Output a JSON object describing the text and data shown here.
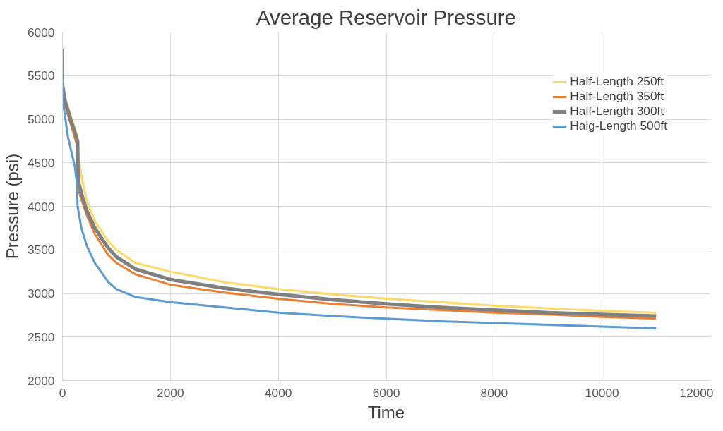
{
  "chart_data": {
    "type": "line",
    "title": "Average Reservoir Pressure",
    "xlabel": "Time",
    "ylabel": "Pressure (psi)",
    "xlim": [
      0,
      12000
    ],
    "xticks": [
      0,
      2000,
      4000,
      6000,
      8000,
      10000,
      12000
    ],
    "ylim": [
      2000,
      6000
    ],
    "yticks": [
      2000,
      2500,
      3000,
      3500,
      4000,
      4500,
      5000,
      5500,
      6000
    ],
    "grid": true,
    "legend": "top right",
    "marker": "none",
    "line_style": "solid",
    "series": [
      {
        "name": "Half-Length 250ft",
        "color": "#ffd966",
        "x": [
          50,
          150,
          280,
          300,
          350,
          450,
          600,
          850,
          1000,
          1350,
          2000,
          3000,
          4000,
          5000,
          6000,
          7000,
          8000,
          9000,
          10000,
          11000
        ],
        "values": [
          5250,
          5050,
          4800,
          4550,
          4350,
          4060,
          3830,
          3600,
          3500,
          3350,
          3250,
          3130,
          3050,
          2990,
          2940,
          2900,
          2860,
          2830,
          2800,
          2780
        ]
      },
      {
        "name": "Half-Length 350ft",
        "color": "#ed7d31",
        "x": [
          0,
          50,
          150,
          270,
          290,
          350,
          450,
          600,
          850,
          1000,
          1350,
          2000,
          3000,
          4000,
          5000,
          6000,
          7000,
          8000,
          9000,
          10000,
          11000
        ],
        "values": [
          5350,
          5150,
          4950,
          4700,
          4200,
          4080,
          3900,
          3680,
          3440,
          3350,
          3220,
          3100,
          3010,
          2940,
          2880,
          2840,
          2810,
          2780,
          2760,
          2730,
          2710
        ]
      },
      {
        "name": "Half-Length 300ft",
        "color": "#808080",
        "x": [
          0,
          50,
          150,
          280,
          290,
          350,
          450,
          600,
          850,
          1000,
          1350,
          2000,
          3000,
          4000,
          5000,
          6000,
          7000,
          8000,
          9000,
          10000,
          11000
        ],
        "values": [
          5400,
          5200,
          5000,
          4750,
          4300,
          4150,
          3950,
          3750,
          3520,
          3420,
          3280,
          3160,
          3060,
          2990,
          2930,
          2880,
          2840,
          2810,
          2780,
          2760,
          2740
        ]
      },
      {
        "name": "Halg-Length 500ft",
        "color": "#5b9bd5",
        "x": [
          0,
          10,
          100,
          230,
          260,
          280,
          350,
          450,
          600,
          850,
          1000,
          1350,
          2000,
          3000,
          4000,
          5000,
          6000,
          7000,
          8000,
          9000,
          10000,
          11000
        ],
        "values": [
          5810,
          5200,
          4800,
          4450,
          4300,
          4000,
          3750,
          3550,
          3350,
          3130,
          3050,
          2960,
          2900,
          2840,
          2780,
          2740,
          2710,
          2680,
          2660,
          2640,
          2620,
          2600
        ]
      }
    ]
  }
}
